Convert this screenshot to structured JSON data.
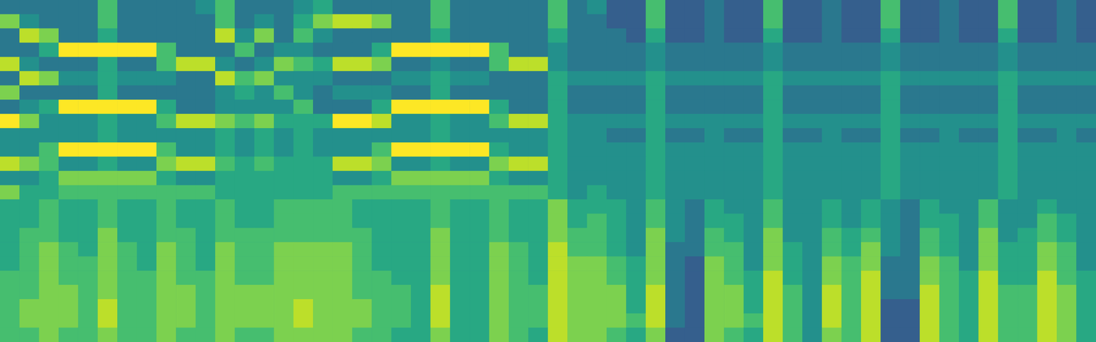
{
  "chart_data": {
    "type": "heatmap",
    "tick_labels": false,
    "color_range": [
      0,
      10
    ],
    "cells": [
      [
        4,
        4,
        4,
        4,
        4,
        7,
        4,
        4,
        4,
        4,
        5,
        7,
        4,
        4,
        4,
        5,
        6,
        4,
        4,
        4,
        4,
        4,
        7,
        4,
        4,
        4,
        4,
        4,
        7,
        4,
        5,
        3,
        3,
        7,
        3,
        3,
        4,
        3,
        3,
        7,
        3,
        3,
        4,
        3,
        3,
        7,
        3,
        3,
        4,
        3,
        3,
        7,
        3,
        3,
        4,
        3
      ],
      [
        8,
        5,
        4,
        4,
        4,
        7,
        4,
        4,
        4,
        4,
        4,
        7,
        4,
        5,
        4,
        6,
        8,
        9,
        9,
        8,
        4,
        4,
        7,
        4,
        4,
        4,
        4,
        4,
        7,
        4,
        4,
        3,
        3,
        7,
        3,
        3,
        4,
        3,
        3,
        7,
        3,
        3,
        4,
        3,
        3,
        7,
        3,
        3,
        4,
        3,
        3,
        7,
        3,
        3,
        4,
        3
      ],
      [
        4,
        9,
        8,
        4,
        4,
        6,
        4,
        4,
        4,
        4,
        4,
        9,
        5,
        8,
        4,
        7,
        5,
        4,
        4,
        4,
        4,
        4,
        6,
        4,
        4,
        4,
        4,
        4,
        6,
        4,
        4,
        4,
        3,
        6,
        3,
        3,
        4,
        3,
        3,
        6,
        3,
        3,
        4,
        3,
        3,
        6,
        3,
        3,
        4,
        3,
        3,
        6,
        3,
        3,
        4,
        3
      ],
      [
        4,
        4,
        6,
        10,
        10,
        10,
        10,
        10,
        7,
        4,
        4,
        4,
        7,
        4,
        5,
        5,
        4,
        4,
        4,
        6,
        10,
        10,
        10,
        10,
        10,
        7,
        4,
        4,
        5,
        4,
        4,
        4,
        4,
        5,
        4,
        4,
        4,
        4,
        4,
        5,
        4,
        4,
        4,
        4,
        4,
        5,
        4,
        4,
        4,
        4,
        4,
        5,
        4,
        4,
        4,
        4
      ],
      [
        9,
        5,
        4,
        4,
        4,
        6,
        4,
        4,
        7,
        9,
        9,
        5,
        4,
        5,
        8,
        7,
        6,
        9,
        9,
        8,
        4,
        4,
        5,
        4,
        4,
        7,
        9,
        9,
        5,
        4,
        4,
        4,
        4,
        5,
        4,
        4,
        4,
        4,
        4,
        5,
        4,
        4,
        4,
        4,
        4,
        5,
        4,
        4,
        4,
        4,
        4,
        5,
        4,
        4,
        4,
        4
      ],
      [
        4,
        9,
        8,
        5,
        5,
        6,
        5,
        5,
        5,
        4,
        4,
        9,
        7,
        8,
        5,
        5,
        5,
        4,
        4,
        4,
        5,
        5,
        6,
        5,
        5,
        4,
        4,
        4,
        6,
        5,
        5,
        5,
        5,
        6,
        5,
        5,
        5,
        5,
        5,
        6,
        5,
        5,
        5,
        5,
        5,
        6,
        5,
        5,
        5,
        5,
        5,
        6,
        5,
        5,
        5,
        5
      ],
      [
        8,
        4,
        4,
        4,
        4,
        6,
        4,
        4,
        4,
        4,
        4,
        5,
        6,
        5,
        7,
        5,
        4,
        5,
        5,
        5,
        4,
        4,
        6,
        4,
        4,
        4,
        4,
        4,
        6,
        4,
        4,
        4,
        4,
        6,
        4,
        4,
        4,
        4,
        4,
        6,
        4,
        4,
        4,
        4,
        4,
        6,
        4,
        4,
        4,
        4,
        4,
        6,
        4,
        4,
        4,
        4
      ],
      [
        4,
        5,
        6,
        10,
        10,
        10,
        10,
        10,
        6,
        4,
        4,
        5,
        5,
        5,
        5,
        7,
        4,
        4,
        4,
        6,
        10,
        10,
        10,
        10,
        10,
        6,
        4,
        4,
        6,
        4,
        4,
        4,
        4,
        6,
        4,
        4,
        4,
        4,
        4,
        6,
        4,
        4,
        4,
        4,
        4,
        6,
        4,
        4,
        4,
        4,
        4,
        6,
        4,
        4,
        4,
        4
      ],
      [
        10,
        8,
        5,
        5,
        5,
        6,
        5,
        5,
        7,
        9,
        9,
        8,
        7,
        8,
        6,
        6,
        6,
        10,
        10,
        9,
        5,
        5,
        6,
        5,
        5,
        7,
        9,
        9,
        6,
        5,
        5,
        5,
        5,
        6,
        5,
        5,
        5,
        5,
        5,
        6,
        5,
        5,
        5,
        5,
        5,
        6,
        5,
        5,
        5,
        5,
        5,
        6,
        5,
        5,
        5,
        5
      ],
      [
        5,
        5,
        5,
        5,
        5,
        6,
        5,
        5,
        5,
        5,
        5,
        6,
        5,
        6,
        5,
        6,
        5,
        5,
        5,
        5,
        5,
        5,
        6,
        5,
        5,
        5,
        5,
        5,
        6,
        5,
        5,
        4,
        4,
        6,
        4,
        4,
        5,
        4,
        4,
        6,
        4,
        4,
        5,
        4,
        4,
        6,
        4,
        4,
        5,
        4,
        4,
        6,
        4,
        4,
        5,
        4
      ],
      [
        5,
        5,
        7,
        10,
        10,
        10,
        10,
        10,
        7,
        5,
        5,
        6,
        5,
        6,
        5,
        6,
        5,
        5,
        5,
        7,
        10,
        10,
        10,
        10,
        10,
        6,
        5,
        5,
        6,
        5,
        5,
        5,
        5,
        6,
        5,
        5,
        5,
        5,
        5,
        6,
        5,
        5,
        5,
        5,
        5,
        6,
        5,
        5,
        5,
        5,
        5,
        6,
        5,
        5,
        5,
        5
      ],
      [
        9,
        8,
        7,
        5,
        5,
        6,
        5,
        5,
        8,
        9,
        9,
        7,
        6,
        7,
        6,
        6,
        6,
        9,
        9,
        8,
        5,
        5,
        6,
        5,
        5,
        8,
        9,
        9,
        6,
        5,
        5,
        5,
        5,
        6,
        5,
        5,
        5,
        5,
        5,
        6,
        5,
        5,
        5,
        5,
        5,
        6,
        5,
        5,
        5,
        5,
        5,
        6,
        5,
        5,
        5,
        5
      ],
      [
        5,
        5,
        6,
        8,
        8,
        8,
        8,
        8,
        6,
        5,
        5,
        6,
        6,
        6,
        6,
        6,
        6,
        5,
        5,
        6,
        8,
        8,
        8,
        8,
        8,
        6,
        5,
        5,
        6,
        5,
        5,
        5,
        5,
        6,
        5,
        5,
        5,
        5,
        5,
        6,
        5,
        5,
        5,
        5,
        5,
        6,
        5,
        5,
        5,
        5,
        5,
        6,
        5,
        5,
        5,
        5
      ],
      [
        8,
        6,
        6,
        7,
        7,
        7,
        7,
        7,
        7,
        7,
        7,
        6,
        6,
        6,
        6,
        6,
        6,
        7,
        7,
        7,
        7,
        7,
        7,
        7,
        7,
        7,
        7,
        7,
        6,
        5,
        6,
        5,
        5,
        6,
        5,
        5,
        5,
        5,
        5,
        6,
        5,
        5,
        5,
        5,
        5,
        6,
        5,
        5,
        5,
        5,
        5,
        6,
        5,
        5,
        5,
        5
      ],
      [
        6,
        6,
        7,
        6,
        6,
        7,
        6,
        6,
        7,
        6,
        6,
        7,
        6,
        6,
        7,
        7,
        7,
        7,
        6,
        6,
        6,
        6,
        7,
        6,
        6,
        7,
        6,
        6,
        8,
        6,
        6,
        6,
        5,
        7,
        5,
        4,
        6,
        5,
        5,
        7,
        5,
        5,
        6,
        5,
        6,
        5,
        4,
        6,
        5,
        5,
        7,
        5,
        5,
        6,
        5,
        5
      ],
      [
        6,
        6,
        7,
        6,
        6,
        7,
        6,
        6,
        7,
        6,
        6,
        7,
        6,
        6,
        7,
        7,
        7,
        7,
        6,
        6,
        6,
        6,
        7,
        6,
        6,
        7,
        6,
        6,
        8,
        6,
        7,
        6,
        5,
        7,
        5,
        4,
        6,
        6,
        5,
        7,
        5,
        5,
        6,
        5,
        6,
        5,
        4,
        6,
        6,
        5,
        7,
        5,
        5,
        7,
        6,
        5
      ],
      [
        6,
        7,
        7,
        6,
        6,
        8,
        6,
        6,
        7,
        7,
        6,
        7,
        7,
        7,
        7,
        7,
        7,
        7,
        7,
        6,
        6,
        6,
        8,
        6,
        6,
        7,
        6,
        6,
        8,
        7,
        7,
        6,
        5,
        8,
        5,
        4,
        7,
        6,
        5,
        8,
        5,
        5,
        7,
        6,
        7,
        5,
        4,
        7,
        6,
        5,
        8,
        5,
        6,
        7,
        6,
        5
      ],
      [
        6,
        7,
        8,
        7,
        6,
        8,
        7,
        6,
        8,
        7,
        6,
        8,
        7,
        7,
        8,
        8,
        8,
        8,
        7,
        6,
        6,
        6,
        8,
        6,
        6,
        8,
        7,
        6,
        9,
        7,
        7,
        6,
        5,
        8,
        4,
        4,
        7,
        7,
        5,
        8,
        6,
        5,
        7,
        6,
        8,
        5,
        4,
        7,
        6,
        5,
        8,
        6,
        6,
        8,
        7,
        5
      ],
      [
        6,
        7,
        8,
        7,
        7,
        8,
        7,
        6,
        8,
        7,
        6,
        8,
        7,
        7,
        8,
        8,
        8,
        8,
        7,
        6,
        6,
        6,
        8,
        6,
        6,
        8,
        7,
        6,
        9,
        8,
        8,
        7,
        6,
        8,
        4,
        3,
        8,
        7,
        5,
        8,
        6,
        5,
        8,
        7,
        8,
        4,
        4,
        8,
        7,
        5,
        8,
        6,
        6,
        8,
        7,
        5
      ],
      [
        7,
        7,
        8,
        7,
        7,
        8,
        7,
        7,
        8,
        7,
        7,
        8,
        7,
        7,
        8,
        8,
        8,
        8,
        7,
        7,
        6,
        6,
        8,
        6,
        6,
        8,
        7,
        6,
        9,
        8,
        8,
        7,
        6,
        8,
        4,
        3,
        8,
        7,
        6,
        9,
        6,
        5,
        8,
        7,
        9,
        4,
        4,
        8,
        7,
        6,
        9,
        6,
        6,
        9,
        7,
        6
      ],
      [
        7,
        7,
        8,
        8,
        7,
        8,
        7,
        7,
        8,
        8,
        7,
        8,
        8,
        8,
        8,
        8,
        8,
        8,
        7,
        7,
        7,
        6,
        9,
        6,
        6,
        8,
        7,
        7,
        9,
        8,
        8,
        8,
        6,
        9,
        4,
        3,
        8,
        8,
        6,
        9,
        7,
        5,
        9,
        7,
        9,
        4,
        4,
        9,
        7,
        6,
        9,
        7,
        7,
        9,
        8,
        6
      ],
      [
        7,
        8,
        8,
        8,
        7,
        9,
        7,
        7,
        8,
        8,
        7,
        8,
        8,
        8,
        8,
        9,
        8,
        8,
        8,
        7,
        7,
        6,
        9,
        6,
        6,
        8,
        7,
        7,
        9,
        8,
        8,
        8,
        6,
        9,
        4,
        3,
        8,
        8,
        6,
        9,
        7,
        5,
        9,
        7,
        9,
        3,
        3,
        9,
        7,
        6,
        9,
        7,
        7,
        9,
        8,
        6
      ],
      [
        7,
        8,
        8,
        8,
        7,
        9,
        7,
        7,
        8,
        8,
        7,
        8,
        8,
        8,
        8,
        9,
        8,
        8,
        8,
        7,
        7,
        6,
        9,
        6,
        6,
        8,
        7,
        7,
        9,
        8,
        8,
        8,
        7,
        9,
        4,
        3,
        8,
        8,
        7,
        9,
        7,
        5,
        9,
        7,
        9,
        3,
        3,
        9,
        7,
        6,
        9,
        7,
        7,
        9,
        8,
        6
      ],
      [
        7,
        7,
        8,
        7,
        7,
        8,
        7,
        7,
        8,
        7,
        7,
        8,
        7,
        7,
        8,
        8,
        8,
        8,
        7,
        7,
        6,
        6,
        8,
        6,
        6,
        8,
        7,
        6,
        9,
        8,
        8,
        7,
        6,
        8,
        3,
        3,
        8,
        7,
        6,
        9,
        7,
        5,
        8,
        7,
        9,
        3,
        3,
        9,
        7,
        6,
        9,
        7,
        7,
        9,
        8,
        6
      ]
    ]
  }
}
